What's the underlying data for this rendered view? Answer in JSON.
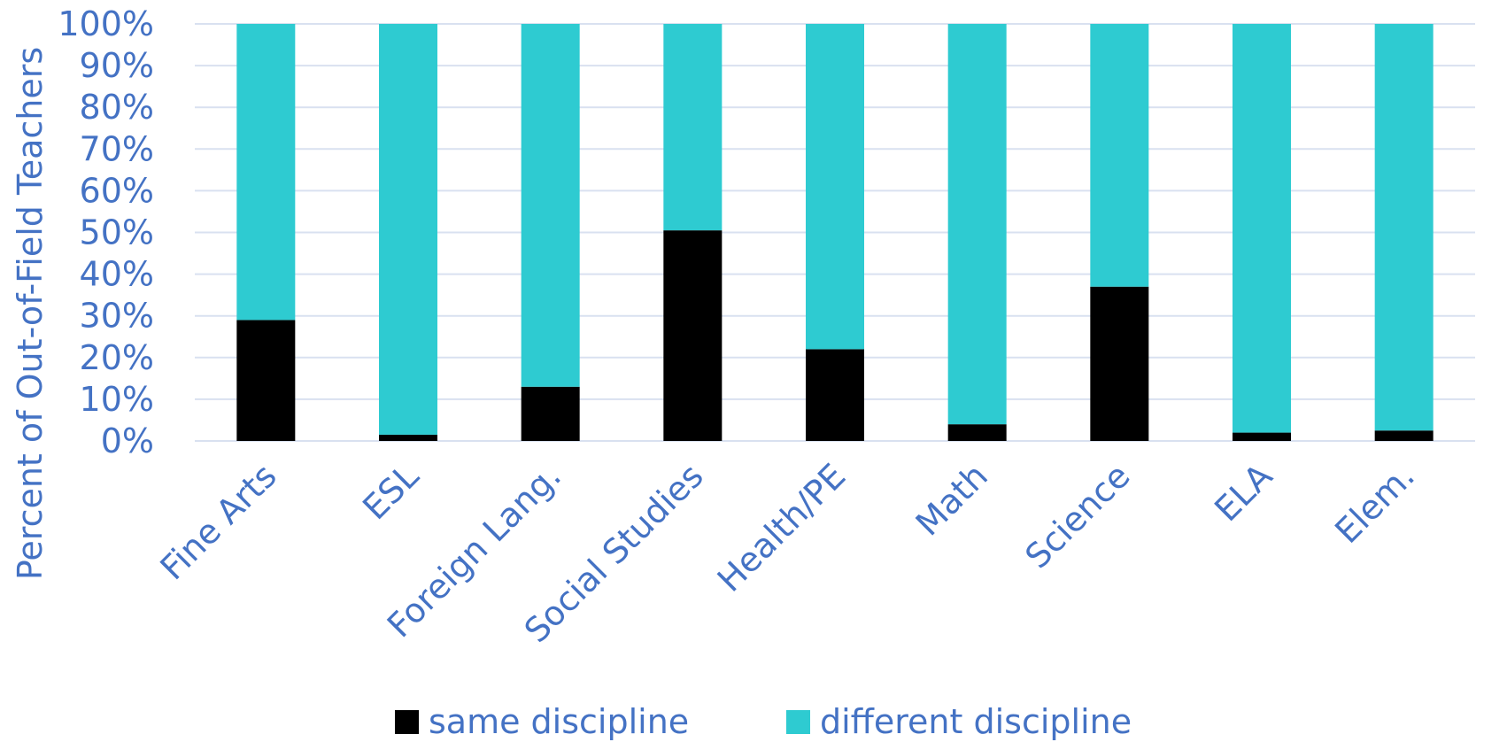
{
  "chart_data": {
    "type": "bar",
    "stacked": true,
    "title": "",
    "ylabel": "Percent of Out-of-Field Teachers",
    "xlabel": "",
    "ylim": [
      0,
      100
    ],
    "yticks": [
      "0%",
      "10%",
      "20%",
      "30%",
      "40%",
      "50%",
      "60%",
      "70%",
      "80%",
      "90%",
      "100%"
    ],
    "categories": [
      "Fine Arts",
      "ESL",
      "Foreign Lang.",
      "Social Studies",
      "Health/PE",
      "Math",
      "Science",
      "ELA",
      "Elem."
    ],
    "series": [
      {
        "name": "same discipline",
        "color": "#000000",
        "values": [
          29,
          1.5,
          13,
          50.5,
          22,
          4,
          37,
          2,
          2.5
        ]
      },
      {
        "name": "different discipline",
        "color": "#2ecbd1",
        "values": [
          71,
          98.5,
          87,
          49.5,
          78,
          96,
          63,
          98,
          97.5
        ]
      }
    ],
    "grid": true,
    "legend": "bottom"
  }
}
